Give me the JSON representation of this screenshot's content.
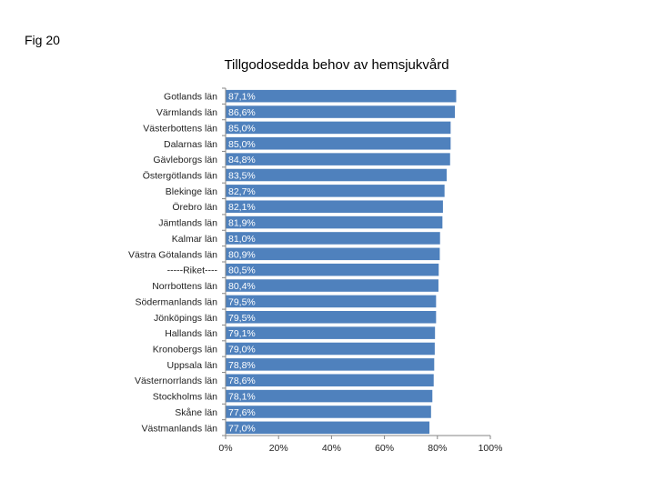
{
  "figure_label": "Fig 20",
  "chart_data": {
    "type": "bar",
    "orientation": "horizontal",
    "title": "Tillgodosedda behov av hemsjukvård",
    "categories": [
      "Gotlands län",
      "Värmlands län",
      "Västerbottens län",
      "Dalarnas län",
      "Gävleborgs län",
      "Östergötlands län",
      "Blekinge län",
      "Örebro län",
      "Jämtlands län",
      "Kalmar län",
      "Västra Götalands län",
      "-----Riket----",
      "Norrbottens län",
      "Södermanlands län",
      "Jönköpings län",
      "Hallands län",
      "Kronobergs län",
      "Uppsala län",
      "Västernorrlands län",
      "Stockholms län",
      "Skåne län",
      "Västmanlands län"
    ],
    "values": [
      87.1,
      86.6,
      85.0,
      85.0,
      84.8,
      83.5,
      82.7,
      82.1,
      81.9,
      81.0,
      80.9,
      80.5,
      80.4,
      79.5,
      79.5,
      79.1,
      79.0,
      78.8,
      78.6,
      78.1,
      77.6,
      77.0
    ],
    "value_labels": [
      "87,1%",
      "86,6%",
      "85,0%",
      "85,0%",
      "84,8%",
      "83,5%",
      "82,7%",
      "82,1%",
      "81,9%",
      "81,0%",
      "80,9%",
      "80,5%",
      "80,4%",
      "79,5%",
      "79,5%",
      "79,1%",
      "79,0%",
      "78,8%",
      "78,6%",
      "78,1%",
      "77,6%",
      "77,0%"
    ],
    "xlim": [
      0,
      100
    ],
    "xticks": [
      "0%",
      "20%",
      "40%",
      "60%",
      "80%",
      "100%"
    ],
    "xlabel": "",
    "ylabel": "",
    "bar_color": "#4F81BD",
    "grid": false
  }
}
